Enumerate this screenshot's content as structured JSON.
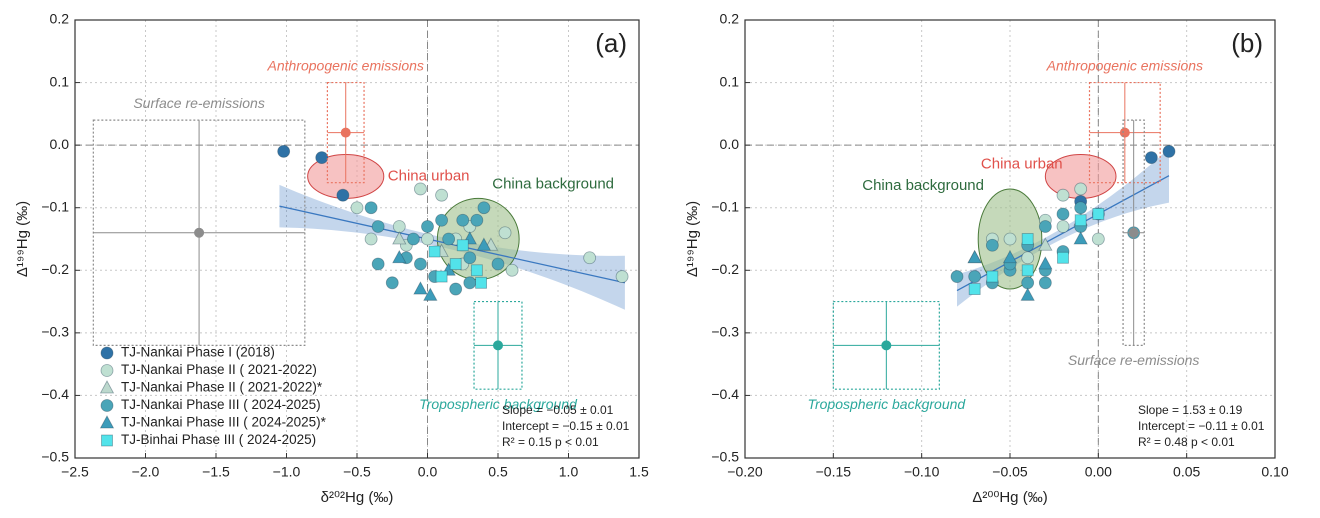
{
  "chart_data": [
    {
      "type": "scatter",
      "title": "(a)",
      "x_label": "δ²⁰²Hg (‰)",
      "y_label": "Δ¹⁹⁹Hg (‰)",
      "xlim": [
        -2.5,
        1.5
      ],
      "ylim": [
        -0.5,
        0.2
      ],
      "xticks": [
        {
          "value": -2.5,
          "label": "−2.5"
        },
        {
          "value": -2.0,
          "label": "−2.0"
        },
        {
          "value": -1.5,
          "label": "−1.5"
        },
        {
          "value": -1.0,
          "label": "−1.0"
        },
        {
          "value": -0.5,
          "label": "−0.5"
        },
        {
          "value": 0,
          "label": "0.0"
        },
        0.5,
        {
          "value": 1,
          "label": "1.0"
        },
        1.5
      ],
      "yticks": [
        {
          "value": -0.5,
          "label": "−0.5"
        },
        {
          "value": -0.4,
          "label": "−0.4"
        },
        {
          "value": -0.3,
          "label": "−0.3"
        },
        {
          "value": -0.2,
          "label": "−0.2"
        },
        {
          "value": -0.1,
          "label": "−0.1"
        },
        {
          "value": 0,
          "label": "0.0"
        },
        0.1,
        0.2
      ],
      "grid": true,
      "legend": "lower left",
      "series": [
        {
          "name": "TJ-Nankai Phase I (2018)",
          "color": "#2f72a6",
          "marker": "circle",
          "x": [
            -1.02,
            -0.75,
            -0.6
          ],
          "y": [
            -0.01,
            -0.02,
            -0.08
          ]
        },
        {
          "name": "TJ-Nankai Phase II ( 2021-2022)",
          "color": "#bfe0d2",
          "marker": "circle",
          "x": [
            -0.5,
            -0.05,
            0.1,
            -0.2,
            0.0,
            0.25,
            -0.15,
            0.55,
            1.15,
            1.38,
            0.6,
            -0.4,
            0.2,
            0.3
          ],
          "y": [
            -0.1,
            -0.07,
            -0.08,
            -0.13,
            -0.15,
            -0.19,
            -0.16,
            -0.14,
            -0.18,
            -0.21,
            -0.2,
            -0.15,
            -0.15,
            -0.13
          ]
        },
        {
          "name": "TJ-Nankai Phase II ( 2021-2022)*",
          "color": "#bcd8cd",
          "marker": "triangle",
          "x": [
            -0.2,
            0.1,
            0.45
          ],
          "y": [
            -0.15,
            -0.17,
            -0.16
          ]
        },
        {
          "name": "TJ-Nankai Phase III ( 2024-2025)",
          "color": "#4aa5b8",
          "marker": "circle",
          "x": [
            -0.4,
            -0.35,
            -0.35,
            -0.25,
            -0.1,
            -0.05,
            0.0,
            0.05,
            0.15,
            0.2,
            0.25,
            0.3,
            0.35,
            0.4,
            0.3,
            0.5,
            -0.15,
            0.1
          ],
          "y": [
            -0.1,
            -0.13,
            -0.19,
            -0.22,
            -0.15,
            -0.19,
            -0.13,
            -0.21,
            -0.15,
            -0.23,
            -0.12,
            -0.18,
            -0.12,
            -0.1,
            -0.22,
            -0.19,
            -0.18,
            -0.12
          ]
        },
        {
          "name": "TJ-Nankai Phase III ( 2024-2025)*",
          "color": "#3c9cba",
          "marker": "triangle",
          "x": [
            -0.2,
            -0.05,
            0.02,
            0.3,
            0.4,
            0.15
          ],
          "y": [
            -0.18,
            -0.23,
            -0.24,
            -0.15,
            -0.16,
            -0.2
          ]
        },
        {
          "name": "TJ-Binhai Phase III ( 2024-2025)",
          "color": "#52e3ea",
          "marker": "square",
          "x": [
            0.1,
            0.2,
            0.35,
            0.38,
            0.05,
            0.25
          ],
          "y": [
            -0.21,
            -0.19,
            -0.2,
            -0.22,
            -0.17,
            -0.16
          ]
        }
      ],
      "fit": {
        "slope": -0.05,
        "intercept": -0.15,
        "xrange": [
          -1.05,
          1.4
        ],
        "color": "#3a78c0"
      },
      "fit_text": [
        "Slope = −0.05 ± 0.01",
        "Intercept = −0.15 ± 0.01",
        "R² = 0.15  p < 0.01"
      ],
      "regions": [
        {
          "label": "China urban",
          "x": -0.58,
          "y": -0.05,
          "rx": 0.27,
          "ry": 0.035,
          "color": "#f29a9a",
          "edge": "#d04545",
          "text_color": "#e0504a"
        },
        {
          "label": "China background",
          "x": 0.36,
          "y": -0.15,
          "rx": 0.29,
          "ry": 0.065,
          "color": "#9fbf8c",
          "edge": "#4a7a3a",
          "text_color": "#2e6b3e"
        }
      ],
      "sources": [
        {
          "label": "Anthropogenic emissions",
          "x": -0.58,
          "y": 0.02,
          "xerr": 0.13,
          "yerr": 0.08,
          "color": "#e9735f"
        },
        {
          "label": "Surface re-emissions",
          "x": -1.62,
          "y": -0.14,
          "xerr": 0.75,
          "yerr": 0.18,
          "color": "#8c8c8c"
        },
        {
          "label": "Tropospheric background",
          "x": 0.5,
          "y": -0.32,
          "xerr": 0.17,
          "yerr": 0.07,
          "color": "#2ba89c"
        }
      ]
    },
    {
      "type": "scatter",
      "title": "(b)",
      "x_label": "Δ²⁰⁰Hg (‰)",
      "y_label": "Δ¹⁹⁹Hg (‰)",
      "xlim": [
        -0.2,
        0.1
      ],
      "ylim": [
        -0.5,
        0.2
      ],
      "xticks": [
        {
          "value": -0.2,
          "label": "−0.20"
        },
        {
          "value": -0.15,
          "label": "−0.15"
        },
        {
          "value": -0.1,
          "label": "−0.10"
        },
        {
          "value": -0.05,
          "label": "−0.05"
        },
        {
          "value": 0,
          "label": "0.00"
        },
        0.05,
        {
          "value": 0.1,
          "label": "0.10"
        }
      ],
      "yticks": [
        {
          "value": -0.5,
          "label": "−0.5"
        },
        {
          "value": -0.4,
          "label": "−0.4"
        },
        {
          "value": -0.3,
          "label": "−0.3"
        },
        {
          "value": -0.2,
          "label": "−0.2"
        },
        {
          "value": -0.1,
          "label": "−0.1"
        },
        {
          "value": 0,
          "label": "0.0"
        },
        0.1,
        0.2
      ],
      "grid": true,
      "series": [
        {
          "color": "#2f72a6",
          "marker": "circle",
          "x": [
            0.04,
            0.03,
            -0.01
          ],
          "y": [
            -0.01,
            -0.02,
            -0.09
          ]
        },
        {
          "color": "#bfe0d2",
          "marker": "circle",
          "x": [
            -0.01,
            -0.02,
            0.0,
            -0.05,
            -0.03,
            -0.04,
            -0.02,
            -0.06
          ],
          "y": [
            -0.07,
            -0.08,
            -0.15,
            -0.15,
            -0.12,
            -0.18,
            -0.13,
            -0.15
          ]
        },
        {
          "color": "#bcd8cd",
          "marker": "triangle",
          "x": [
            -0.07,
            -0.01,
            -0.03
          ],
          "y": [
            -0.18,
            -0.12,
            -0.16
          ]
        },
        {
          "color": "#4aa5b8",
          "marker": "circle",
          "x": [
            -0.08,
            -0.07,
            -0.06,
            -0.05,
            -0.04,
            -0.04,
            -0.03,
            -0.03,
            -0.02,
            -0.02,
            -0.01,
            0.0,
            -0.05,
            -0.06,
            -0.01,
            -0.03,
            0.02
          ],
          "y": [
            -0.21,
            -0.21,
            -0.22,
            -0.2,
            -0.22,
            -0.16,
            -0.2,
            -0.13,
            -0.11,
            -0.17,
            -0.1,
            -0.11,
            -0.19,
            -0.16,
            -0.13,
            -0.22,
            -0.14
          ]
        },
        {
          "color": "#3c9cba",
          "marker": "triangle",
          "x": [
            -0.04,
            -0.05,
            -0.01,
            -0.03,
            -0.07
          ],
          "y": [
            -0.24,
            -0.18,
            -0.15,
            -0.19,
            -0.18
          ]
        },
        {
          "color": "#52e3ea",
          "marker": "square",
          "x": [
            -0.07,
            -0.06,
            -0.04,
            -0.04,
            -0.02,
            -0.01,
            0.0
          ],
          "y": [
            -0.23,
            -0.21,
            -0.2,
            -0.15,
            -0.18,
            -0.12,
            -0.11
          ]
        }
      ],
      "fit": {
        "slope": 1.53,
        "intercept": -0.11,
        "xrange": [
          -0.08,
          0.04
        ],
        "color": "#3a78c0"
      },
      "fit_text": [
        "Slope = 1.53 ± 0.19",
        "Intercept = −0.11 ± 0.01",
        "R² = 0.48  p < 0.01"
      ],
      "regions": [
        {
          "label": "China urban",
          "x": -0.01,
          "y": -0.05,
          "rx": 0.02,
          "ry": 0.035,
          "color": "#f29a9a",
          "edge": "#d04545",
          "text_color": "#e0504a"
        },
        {
          "label": "China background",
          "x": -0.05,
          "y": -0.15,
          "rx": 0.018,
          "ry": 0.08,
          "color": "#9fbf8c",
          "edge": "#4a7a3a",
          "text_color": "#2e6b3e"
        }
      ],
      "sources": [
        {
          "label": "Anthropogenic emissions",
          "x": 0.015,
          "y": 0.02,
          "xerr": 0.02,
          "yerr": 0.08,
          "color": "#e9735f"
        },
        {
          "label": "Surface re-emissions",
          "x": 0.02,
          "y": -0.14,
          "xerr": 0.006,
          "yerr": 0.18,
          "color": "#8c8c8c"
        },
        {
          "label": "Tropospheric background",
          "x": -0.12,
          "y": -0.32,
          "xerr": 0.03,
          "yerr": 0.07,
          "color": "#2ba89c"
        }
      ]
    }
  ]
}
